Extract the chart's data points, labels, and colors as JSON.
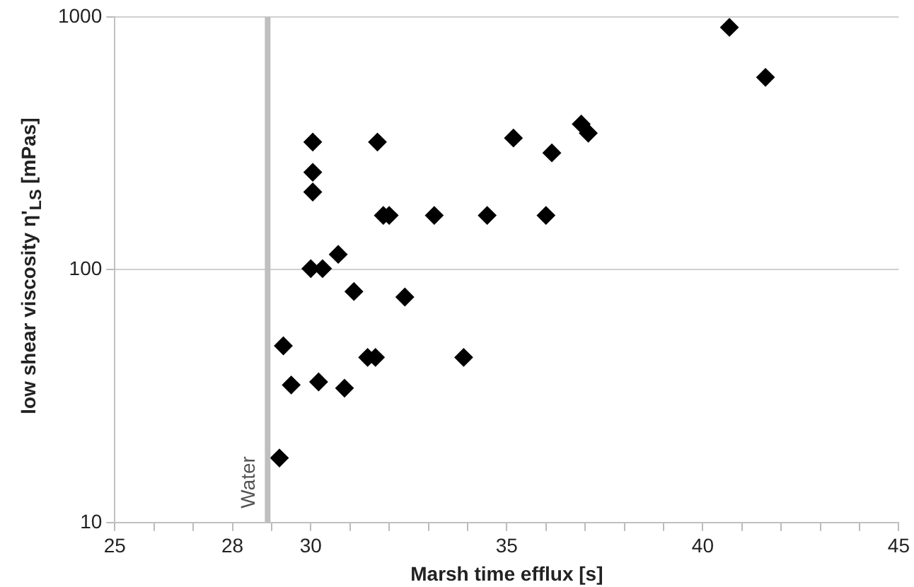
{
  "chart_data": {
    "type": "scatter",
    "xlabel": "Marsh time efflux [s]",
    "ylabel": "low shear viscosity  η'$_{LS}$ [mPas]",
    "x": [
      30.05,
      30.05,
      30.05,
      31.7,
      31.85,
      32.0,
      33.15,
      34.5,
      30.7,
      30.0,
      30.3,
      31.1,
      32.4,
      29.3,
      31.45,
      31.65,
      33.9,
      29.5,
      30.2,
      30.86,
      29.2,
      40.68,
      41.6,
      35.17,
      36.15,
      36.9,
      37.08,
      36.0
    ],
    "values": [
      320,
      243,
      203,
      320,
      164,
      164,
      164,
      164,
      115,
      101,
      101,
      82,
      78,
      50,
      45,
      45,
      45,
      35,
      36,
      34,
      18,
      910,
      577,
      332,
      290,
      377,
      347,
      164
    ],
    "color": "#000000",
    "marker": "diamond",
    "log": "y",
    "grid": "y",
    "xlim": [
      25,
      45
    ],
    "xticks": [
      25,
      {
        "value": 26,
        "label": null
      },
      {
        "value": 27,
        "label": null
      },
      28,
      {
        "value": 29,
        "label": null
      },
      30,
      {
        "value": 31,
        "label": null
      },
      {
        "value": 32,
        "label": null
      },
      {
        "value": 33,
        "label": null
      },
      {
        "value": 34,
        "label": null
      },
      35,
      {
        "value": 36,
        "label": null
      },
      {
        "value": 37,
        "label": null
      },
      {
        "value": 38,
        "label": null
      },
      {
        "value": 39,
        "label": null
      },
      40,
      {
        "value": 41,
        "label": null
      },
      {
        "value": 42,
        "label": null
      },
      {
        "value": 43,
        "label": null
      },
      {
        "value": 44,
        "label": null
      },
      45
    ],
    "ylim": [
      10,
      1000
    ],
    "yticks": [
      10,
      100,
      1000
    ],
    "ref_lines": [
      {
        "axis": "x",
        "value": 28.9,
        "label": "Water",
        "color": "#bfbfbf"
      }
    ]
  }
}
